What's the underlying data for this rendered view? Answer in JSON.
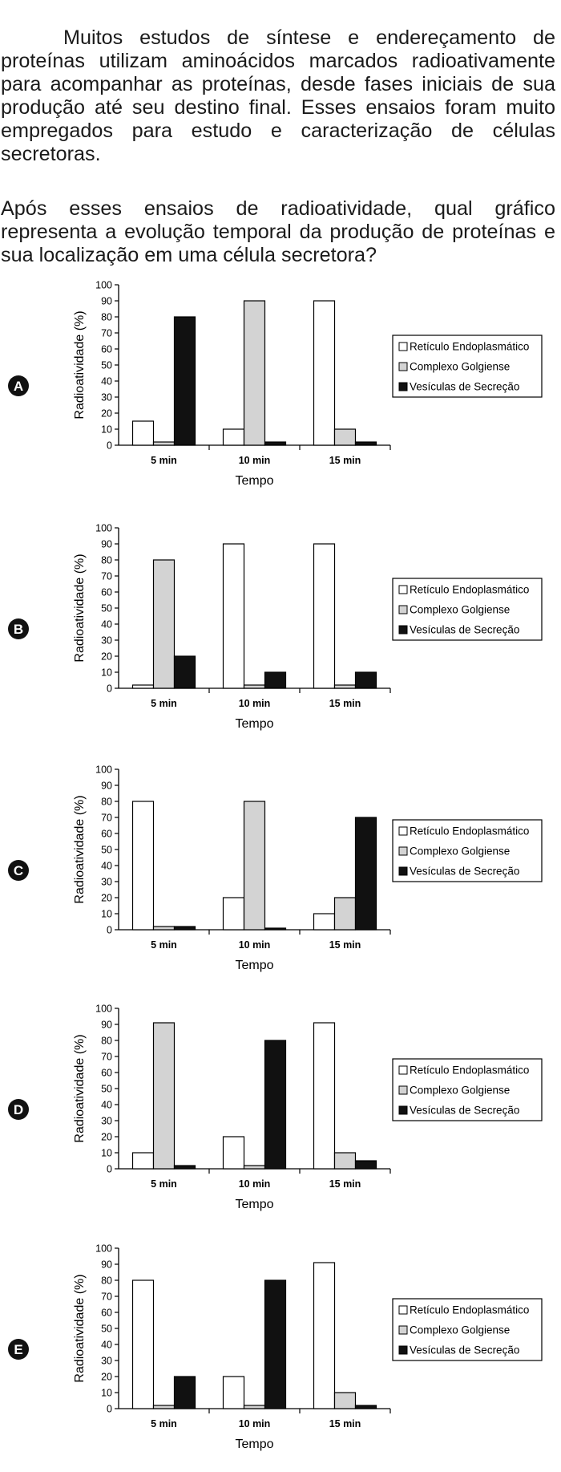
{
  "question": {
    "paragraph_1": "Muitos estudos de síntese e endereçamento de proteínas utilizam aminoácidos marcados radioativamente para acompanhar as proteínas, desde fases iniciais de sua produção até seu destino final. Esses ensaios foram muito empregados para estudo e caracterização de células secretoras.",
    "paragraph_2": "Após esses ensaios de radioatividade, qual gráfico representa a evolução temporal da produção de proteínas e sua localização em uma célula secretora?"
  },
  "colors": {
    "reticulo": "#ffffff",
    "golgi": "#d3d3d3",
    "vesiculas": "#111111",
    "axis": "#000000"
  },
  "chart_data": [
    {
      "type": "bar",
      "option": "A",
      "categories": [
        "5 min",
        "10 min",
        "15 min"
      ],
      "series": [
        {
          "name": "Retículo Endoplasmático",
          "values": [
            15,
            10,
            90
          ]
        },
        {
          "name": "Complexo Golgiense",
          "values": [
            2,
            90,
            10
          ]
        },
        {
          "name": "Vesículas de Secreção",
          "values": [
            80,
            2,
            2
          ]
        }
      ],
      "xlabel": "Tempo",
      "ylabel": "Radioatividade (%)",
      "ylim": [
        0,
        100
      ],
      "yticks": [
        0,
        10,
        20,
        30,
        40,
        50,
        60,
        70,
        80,
        90,
        100
      ],
      "legend": "right",
      "grid": false
    },
    {
      "type": "bar",
      "option": "B",
      "categories": [
        "5 min",
        "10 min",
        "15 min"
      ],
      "series": [
        {
          "name": "Retículo Endoplasmático",
          "values": [
            2,
            90,
            90
          ]
        },
        {
          "name": "Complexo Golgiense",
          "values": [
            80,
            2,
            2
          ]
        },
        {
          "name": "Vesículas de Secreção",
          "values": [
            20,
            10,
            10
          ]
        }
      ],
      "xlabel": "Tempo",
      "ylabel": "Radioatividade (%)",
      "ylim": [
        0,
        100
      ],
      "yticks": [
        0,
        10,
        20,
        30,
        40,
        50,
        60,
        70,
        80,
        90,
        100
      ],
      "legend": "right",
      "grid": false
    },
    {
      "type": "bar",
      "option": "C",
      "categories": [
        "5 min",
        "10 min",
        "15 min"
      ],
      "series": [
        {
          "name": "Retículo Endoplasmático",
          "values": [
            80,
            20,
            10
          ]
        },
        {
          "name": "Complexo Golgiense",
          "values": [
            2,
            80,
            20
          ]
        },
        {
          "name": "Vesículas de Secreção",
          "values": [
            2,
            1,
            70
          ]
        }
      ],
      "xlabel": "Tempo",
      "ylabel": "Radioatividade (%)",
      "ylim": [
        0,
        100
      ],
      "yticks": [
        0,
        10,
        20,
        30,
        40,
        50,
        60,
        70,
        80,
        90,
        100
      ],
      "legend": "right",
      "grid": false
    },
    {
      "type": "bar",
      "option": "D",
      "categories": [
        "5 min",
        "10 min",
        "15 min"
      ],
      "series": [
        {
          "name": "Retículo Endoplasmático",
          "values": [
            10,
            20,
            91
          ]
        },
        {
          "name": "Complexo Golgiense",
          "values": [
            91,
            2,
            10
          ]
        },
        {
          "name": "Vesículas de Secreção",
          "values": [
            2,
            80,
            5
          ]
        }
      ],
      "xlabel": "Tempo",
      "ylabel": "Radioatividade (%)",
      "ylim": [
        0,
        100
      ],
      "yticks": [
        0,
        10,
        20,
        30,
        40,
        50,
        60,
        70,
        80,
        90,
        100
      ],
      "legend": "right",
      "grid": false
    },
    {
      "type": "bar",
      "option": "E",
      "categories": [
        "5 min",
        "10 min",
        "15 min"
      ],
      "series": [
        {
          "name": "Retículo Endoplasmático",
          "values": [
            80,
            20,
            91
          ]
        },
        {
          "name": "Complexo Golgiense",
          "values": [
            2,
            2,
            10
          ]
        },
        {
          "name": "Vesículas de Secreção",
          "values": [
            20,
            80,
            2
          ]
        }
      ],
      "xlabel": "Tempo",
      "ylabel": "Radioatividade (%)",
      "ylim": [
        0,
        100
      ],
      "yticks": [
        0,
        10,
        20,
        30,
        40,
        50,
        60,
        70,
        80,
        90,
        100
      ],
      "legend": "right",
      "grid": false
    }
  ]
}
